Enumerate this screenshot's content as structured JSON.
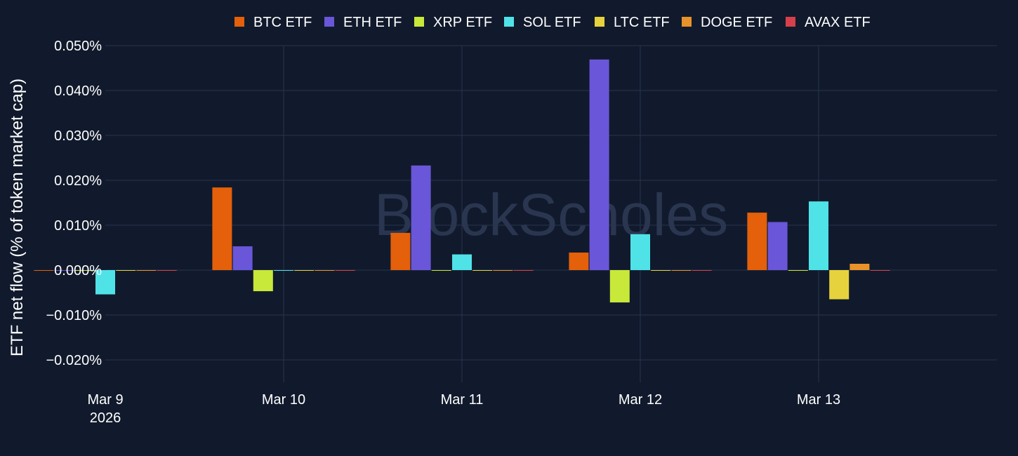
{
  "watermark": "BlockScholes",
  "chart_data": {
    "type": "bar",
    "ylabel": "ETF net flow (% of token market cap)",
    "ylim": [
      -0.025,
      0.05
    ],
    "ytick_values": [
      0.05,
      0.04,
      0.03,
      0.02,
      0.01,
      0.0,
      -0.01,
      -0.02
    ],
    "ytick_labels": [
      "0.050%",
      "0.040%",
      "0.030%",
      "0.020%",
      "0.010%",
      "0.000%",
      "−0.010%",
      "−0.020%"
    ],
    "categories": [
      "Mar 9 2026",
      "Mar 10",
      "Mar 11",
      "Mar 12",
      "Mar 13"
    ],
    "xtick_labels": [
      [
        "Mar 9",
        "2026"
      ],
      [
        "Mar 10"
      ],
      [
        "Mar 11"
      ],
      [
        "Mar 12"
      ],
      [
        "Mar 13"
      ]
    ],
    "grid": true,
    "legend_position": "top-center",
    "series": [
      {
        "name": "BTC ETF",
        "color": "#e4600a",
        "values": [
          0.0,
          0.0184,
          0.0083,
          0.0039,
          0.0128
        ]
      },
      {
        "name": "ETH ETF",
        "color": "#6a56d8",
        "values": [
          0.0,
          0.0053,
          0.0233,
          0.0469,
          0.0107
        ]
      },
      {
        "name": "XRP ETF",
        "color": "#c8e83a",
        "values": [
          0.0,
          -0.0047,
          0.0,
          -0.0072,
          0.0
        ]
      },
      {
        "name": "SOL ETF",
        "color": "#4fe3e8",
        "values": [
          -0.0054,
          0.0,
          0.0035,
          0.008,
          0.0153
        ]
      },
      {
        "name": "LTC ETF",
        "color": "#e6d23c",
        "values": [
          0.0,
          0.0,
          0.0,
          0.0,
          -0.0065
        ]
      },
      {
        "name": "DOGE ETF",
        "color": "#e8922a",
        "values": [
          0.0,
          0.0,
          0.0,
          0.0,
          0.0014
        ]
      },
      {
        "name": "AVAX ETF",
        "color": "#d6404a",
        "values": [
          0.0,
          0.0,
          0.0,
          0.0,
          0.0
        ]
      }
    ]
  }
}
